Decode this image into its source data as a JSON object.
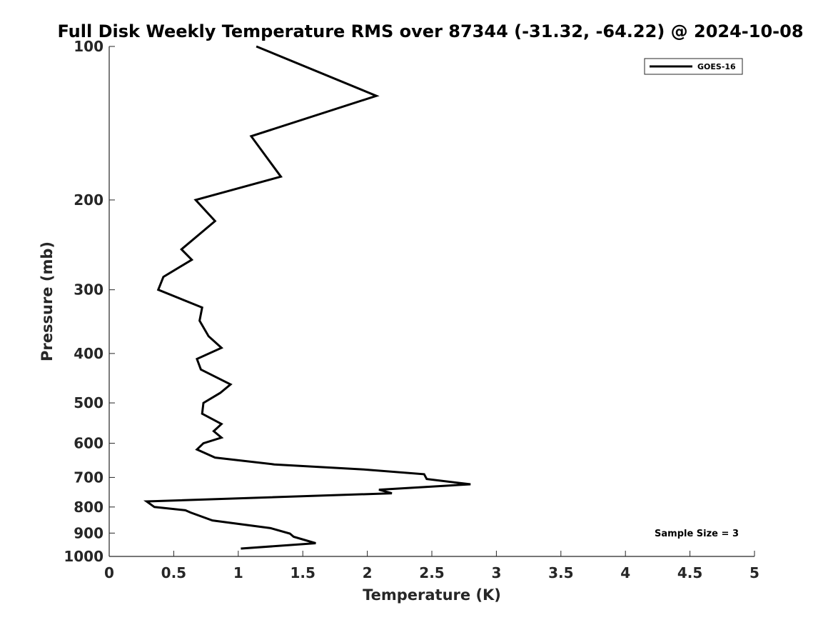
{
  "chart_data": {
    "type": "line",
    "title": "Full Disk Weekly Temperature RMS over 87344 (-31.32, -64.22) @ 2024-10-08",
    "xlabel": "Temperature (K)",
    "ylabel": "Pressure (mb)",
    "xlim": [
      0,
      5
    ],
    "ylim": [
      1000,
      100
    ],
    "yscale": "log",
    "y_reversed": true,
    "grid": false,
    "legend_position": "top-right",
    "xticks": [
      0,
      0.5,
      1,
      1.5,
      2,
      2.5,
      3,
      3.5,
      4,
      4.5,
      5
    ],
    "xtick_labels": [
      "0",
      "0.5",
      "1",
      "1.5",
      "2",
      "2.5",
      "3",
      "3.5",
      "4",
      "4.5",
      "5"
    ],
    "yticks": [
      100,
      200,
      300,
      400,
      500,
      600,
      700,
      800,
      900,
      1000
    ],
    "ytick_labels": [
      "100",
      "200",
      "300",
      "400",
      "500",
      "600",
      "700",
      "800",
      "900",
      "1000"
    ],
    "annotation": "Sample Size = 3",
    "series": [
      {
        "name": "GOES-16",
        "color": "#000000",
        "points": [
          [
            1.14,
            100
          ],
          [
            2.07,
            125
          ],
          [
            1.1,
            150
          ],
          [
            1.22,
            165
          ],
          [
            1.33,
            180
          ],
          [
            0.67,
            200
          ],
          [
            0.82,
            220
          ],
          [
            0.56,
            250
          ],
          [
            0.64,
            262
          ],
          [
            0.42,
            283
          ],
          [
            0.38,
            300
          ],
          [
            0.72,
            325
          ],
          [
            0.7,
            345
          ],
          [
            0.77,
            370
          ],
          [
            0.87,
            390
          ],
          [
            0.68,
            410
          ],
          [
            0.71,
            430
          ],
          [
            0.94,
            460
          ],
          [
            0.86,
            478
          ],
          [
            0.73,
            500
          ],
          [
            0.72,
            525
          ],
          [
            0.87,
            550
          ],
          [
            0.81,
            568
          ],
          [
            0.87,
            585
          ],
          [
            0.73,
            600
          ],
          [
            0.68,
            617
          ],
          [
            0.82,
            640
          ],
          [
            1.28,
            660
          ],
          [
            1.96,
            675
          ],
          [
            2.44,
            690
          ],
          [
            2.46,
            705
          ],
          [
            2.8,
            722
          ],
          [
            2.09,
            740
          ],
          [
            2.19,
            752
          ],
          [
            0.29,
            780
          ],
          [
            0.35,
            800
          ],
          [
            0.59,
            812
          ],
          [
            0.63,
            820
          ],
          [
            0.8,
            850
          ],
          [
            1.25,
            880
          ],
          [
            1.4,
            902
          ],
          [
            1.43,
            915
          ],
          [
            1.6,
            942
          ],
          [
            1.02,
            965
          ]
        ]
      }
    ]
  }
}
